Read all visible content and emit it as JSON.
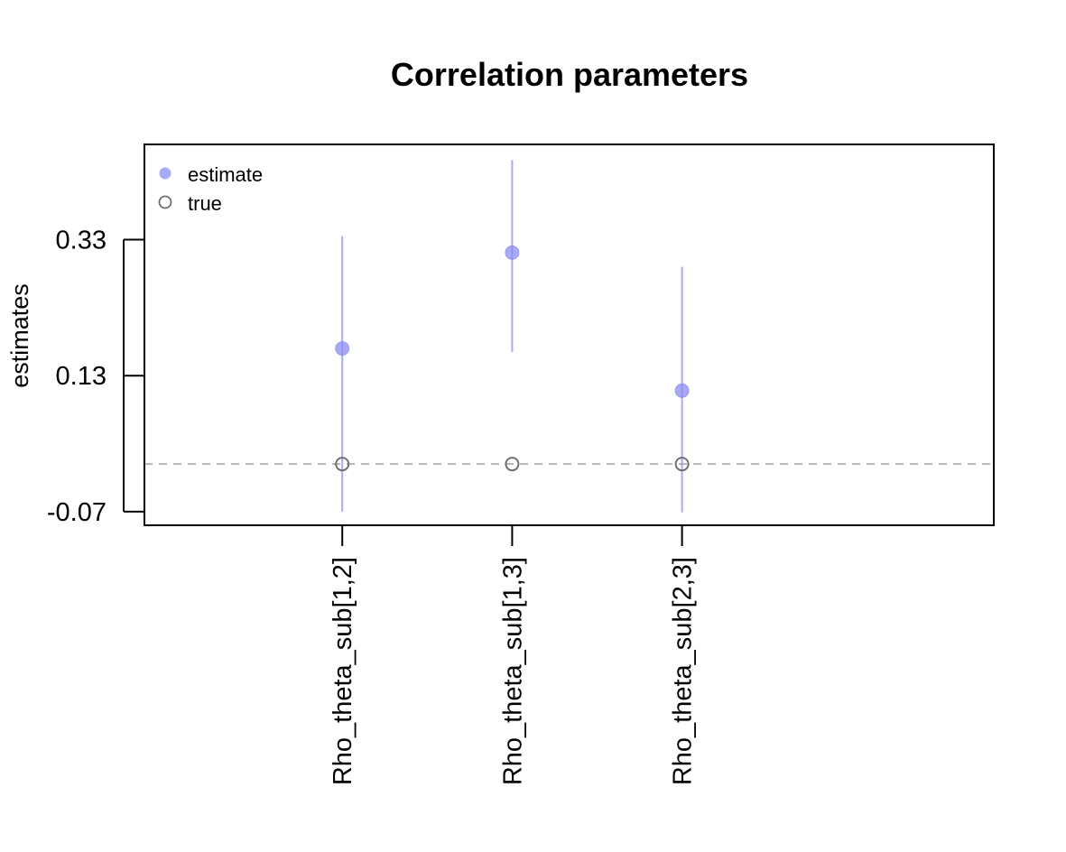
{
  "chart_data": {
    "type": "scatter",
    "title": "Correlation parameters",
    "xlabel": "",
    "ylabel": "estimates",
    "categories": [
      "Rho_theta_sub[1,2]",
      "Rho_theta_sub[1,3]",
      "Rho_theta_sub[2,3]"
    ],
    "yticks": [
      "0.33",
      "0.13",
      "-0.07"
    ],
    "ylim": [
      -0.09,
      0.47
    ],
    "reference_line": 0.0,
    "legend_position": "top-left",
    "series": [
      {
        "name": "estimate",
        "color": "#8c8cf2",
        "values": [
          0.17,
          0.311,
          0.108
        ],
        "lower": [
          -0.07,
          0.165,
          -0.071
        ],
        "upper": [
          0.335,
          0.447,
          0.29
        ]
      },
      {
        "name": "true",
        "color": "#707070",
        "values": [
          0.0,
          0.0,
          0.0
        ]
      }
    ]
  }
}
